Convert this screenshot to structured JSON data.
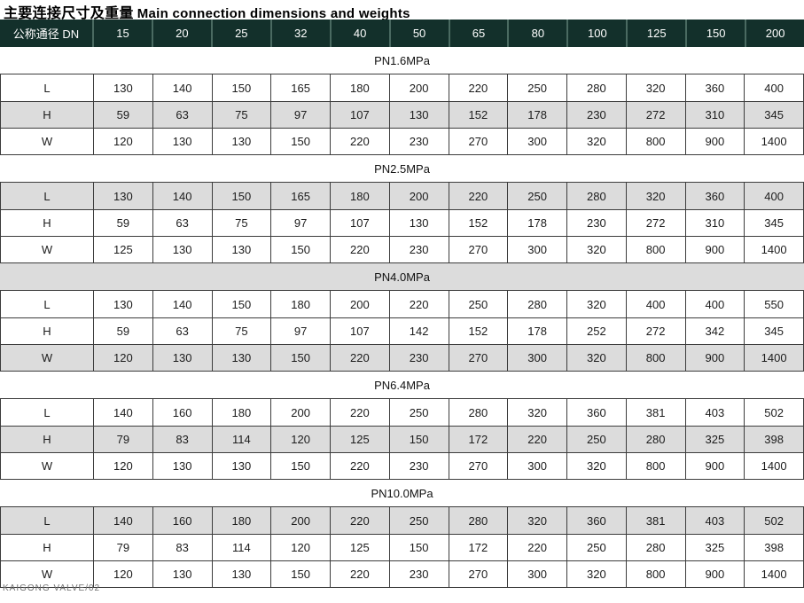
{
  "title": {
    "zh": "主要连接尺寸及重量",
    "en": "Main connection dimensions and weights"
  },
  "table": {
    "header_label": "公称通径 DN",
    "dn_sizes": [
      "15",
      "20",
      "25",
      "32",
      "40",
      "50",
      "65",
      "80",
      "100",
      "125",
      "150",
      "200"
    ],
    "sections": [
      {
        "pressure": "PN1.6MPa",
        "band_shaded": false,
        "rows": [
          {
            "label": "L",
            "shaded": false,
            "values": [
              "130",
              "140",
              "150",
              "165",
              "180",
              "200",
              "220",
              "250",
              "280",
              "320",
              "360",
              "400"
            ]
          },
          {
            "label": "H",
            "shaded": true,
            "values": [
              "59",
              "63",
              "75",
              "97",
              "107",
              "130",
              "152",
              "178",
              "230",
              "272",
              "310",
              "345"
            ]
          },
          {
            "label": "W",
            "shaded": false,
            "values": [
              "120",
              "130",
              "130",
              "150",
              "220",
              "230",
              "270",
              "300",
              "320",
              "800",
              "900",
              "1400"
            ]
          }
        ]
      },
      {
        "pressure": "PN2.5MPa",
        "band_shaded": false,
        "rows": [
          {
            "label": "L",
            "shaded": true,
            "values": [
              "130",
              "140",
              "150",
              "165",
              "180",
              "200",
              "220",
              "250",
              "280",
              "320",
              "360",
              "400"
            ]
          },
          {
            "label": "H",
            "shaded": false,
            "values": [
              "59",
              "63",
              "75",
              "97",
              "107",
              "130",
              "152",
              "178",
              "230",
              "272",
              "310",
              "345"
            ]
          },
          {
            "label": "W",
            "shaded": false,
            "values": [
              "125",
              "130",
              "130",
              "150",
              "220",
              "230",
              "270",
              "300",
              "320",
              "800",
              "900",
              "1400"
            ]
          }
        ]
      },
      {
        "pressure": "PN4.0MPa",
        "band_shaded": true,
        "rows": [
          {
            "label": "L",
            "shaded": false,
            "values": [
              "130",
              "140",
              "150",
              "180",
              "200",
              "220",
              "250",
              "280",
              "320",
              "400",
              "400",
              "550"
            ]
          },
          {
            "label": "H",
            "shaded": false,
            "values": [
              "59",
              "63",
              "75",
              "97",
              "107",
              "142",
              "152",
              "178",
              "252",
              "272",
              "342",
              "345"
            ]
          },
          {
            "label": "W",
            "shaded": true,
            "values": [
              "120",
              "130",
              "130",
              "150",
              "220",
              "230",
              "270",
              "300",
              "320",
              "800",
              "900",
              "1400"
            ]
          }
        ]
      },
      {
        "pressure": "PN6.4MPa",
        "band_shaded": false,
        "rows": [
          {
            "label": "L",
            "shaded": false,
            "values": [
              "140",
              "160",
              "180",
              "200",
              "220",
              "250",
              "280",
              "320",
              "360",
              "381",
              "403",
              "502"
            ]
          },
          {
            "label": "H",
            "shaded": true,
            "values": [
              "79",
              "83",
              "114",
              "120",
              "125",
              "150",
              "172",
              "220",
              "250",
              "280",
              "325",
              "398"
            ]
          },
          {
            "label": "W",
            "shaded": false,
            "values": [
              "120",
              "130",
              "130",
              "150",
              "220",
              "230",
              "270",
              "300",
              "320",
              "800",
              "900",
              "1400"
            ]
          }
        ]
      },
      {
        "pressure": "PN10.0MPa",
        "band_shaded": false,
        "rows": [
          {
            "label": "L",
            "shaded": true,
            "values": [
              "140",
              "160",
              "180",
              "200",
              "220",
              "250",
              "280",
              "320",
              "360",
              "381",
              "403",
              "502"
            ]
          },
          {
            "label": "H",
            "shaded": false,
            "values": [
              "79",
              "83",
              "114",
              "120",
              "125",
              "150",
              "172",
              "220",
              "250",
              "280",
              "325",
              "398"
            ]
          },
          {
            "label": "W",
            "shaded": false,
            "values": [
              "120",
              "130",
              "130",
              "150",
              "220",
              "230",
              "270",
              "300",
              "320",
              "800",
              "900",
              "1400"
            ]
          }
        ]
      }
    ]
  },
  "footer": {
    "text": "KAIGONG VALVE/02"
  },
  "colors": {
    "header_bg": "#13302b",
    "header_separator": "#4a6a61",
    "header_text": "#ffffff",
    "row_shade": "#dcdcdc",
    "border": "#3c3c3c"
  }
}
